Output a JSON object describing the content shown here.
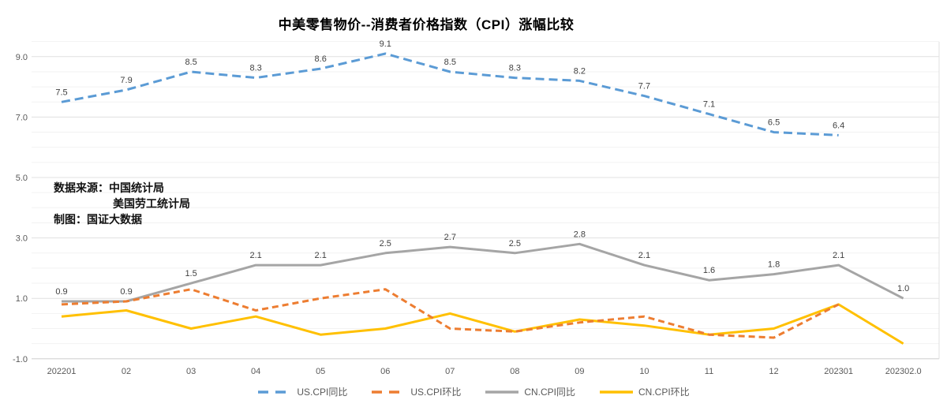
{
  "annotation": {
    "line1": "数据来源：中国统计局",
    "line2": "美国劳工统计局",
    "line3": "制图：国证大数据"
  },
  "chart_data": {
    "type": "line",
    "title": "中美零售物价--消费者价格指数（CPI）涨幅比较",
    "xlabel": "",
    "ylabel": "",
    "categories": [
      "202201",
      "02",
      "03",
      "04",
      "05",
      "06",
      "07",
      "08",
      "09",
      "10",
      "11",
      "12",
      "202301",
      "202302.0"
    ],
    "series": [
      {
        "id": "us-cpi-yoy",
        "name": "US.CPI同比",
        "color": "#5B9BD5",
        "style": "dashed",
        "show_labels": true,
        "values": [
          7.5,
          7.9,
          8.5,
          8.3,
          8.6,
          9.1,
          8.5,
          8.3,
          8.2,
          7.7,
          7.1,
          6.5,
          6.4,
          null
        ]
      },
      {
        "id": "us-cpi-mom",
        "name": "US.CPI环比",
        "color": "#ED7D31",
        "style": "dashed",
        "show_labels": false,
        "values": [
          0.8,
          0.9,
          1.3,
          0.6,
          1.0,
          1.3,
          0.0,
          -0.1,
          0.2,
          0.4,
          -0.2,
          -0.3,
          0.8,
          null
        ]
      },
      {
        "id": "cn-cpi-yoy",
        "name": "CN.CPI同比",
        "color": "#A5A5A5",
        "style": "solid",
        "show_labels": true,
        "values": [
          0.9,
          0.9,
          1.5,
          2.1,
          2.1,
          2.5,
          2.7,
          2.5,
          2.8,
          2.1,
          1.6,
          1.8,
          2.1,
          1.0
        ]
      },
      {
        "id": "cn-cpi-mom",
        "name": "CN.CPI环比",
        "color": "#FFC000",
        "style": "solid",
        "show_labels": false,
        "values": [
          0.4,
          0.6,
          0.0,
          0.4,
          -0.2,
          0.0,
          0.5,
          -0.1,
          0.3,
          0.1,
          -0.2,
          0.0,
          0.8,
          -0.5
        ]
      }
    ],
    "y_ticks": [
      9.0,
      7.0,
      5.0,
      3.0,
      1.0,
      -1.0
    ],
    "ylim": [
      -1.1,
      9.5
    ],
    "grid": {
      "major_every": 2.0,
      "minor_every": 0.5,
      "grid_on": true
    },
    "legend_position": "bottom",
    "colors": {
      "axis_text": "#595959",
      "data_label_text": "#3f3f3f",
      "grid_minor": "#f2f2f2",
      "grid_major": "#e0e0e0",
      "axis_line": "#d6d6d6"
    }
  }
}
